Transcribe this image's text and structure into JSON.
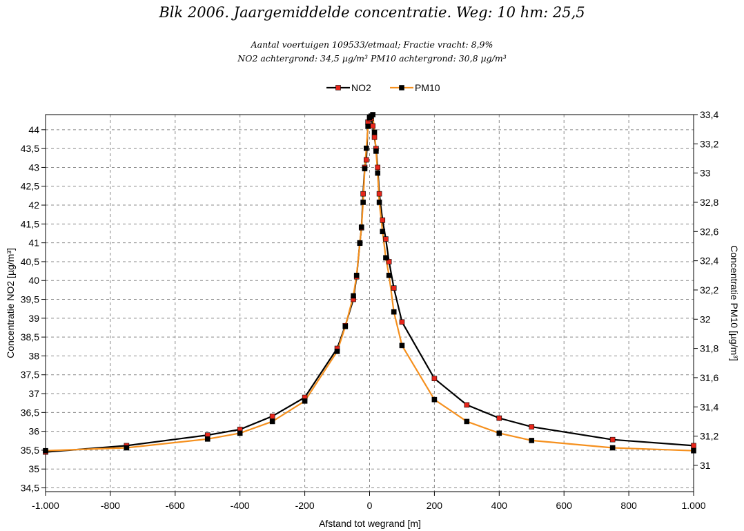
{
  "chart_data": {
    "type": "line",
    "title": "Blk 2006. Jaargemiddelde concentratie. Weg: 10 hm: 25,5",
    "subtitle_lines": [
      "Aantal voertuigen 109533/etmaal; Fractie vracht: 8,9%",
      "NO2 achtergrond:  34,5 µg/m³ PM10 achtergrond:  30,8 µg/m³"
    ],
    "xlabel": "Afstand tot wegrand [m]",
    "ylabel_left": "Concentratie NO2 [µg/m³]",
    "ylabel_right": "Concentratie PM10 [µg/m³]",
    "xlim": [
      -1000,
      1000
    ],
    "ylim_left": [
      34.4,
      44.4
    ],
    "ylim_right": [
      30.82,
      33.4
    ],
    "x_ticks": [
      -1000,
      -800,
      -600,
      -400,
      -200,
      0,
      200,
      400,
      600,
      800,
      1000
    ],
    "x_tick_labels": [
      "-1.000",
      "-800",
      "-600",
      "-400",
      "-200",
      "0",
      "200",
      "400",
      "600",
      "800",
      "1.000"
    ],
    "y_left_ticks": [
      34.5,
      35,
      35.5,
      36,
      36.5,
      37,
      37.5,
      38,
      38.5,
      39,
      39.5,
      40,
      40.5,
      41,
      41.5,
      42,
      42.5,
      43,
      43.5,
      44
    ],
    "y_left_tick_labels": [
      "34,5",
      "35",
      "35,5",
      "36",
      "36,5",
      "37",
      "37,5",
      "38",
      "38,5",
      "39",
      "39,5",
      "40",
      "40,5",
      "41",
      "41,5",
      "42",
      "42,5",
      "43",
      "43,5",
      "44"
    ],
    "y_right_ticks": [
      31,
      31.2,
      31.4,
      31.6,
      31.8,
      32,
      32.2,
      32.4,
      32.6,
      32.8,
      33,
      33.2,
      33.4
    ],
    "y_right_tick_labels": [
      "31",
      "31,2",
      "31,4",
      "31,6",
      "31,8",
      "32",
      "32,2",
      "32,4",
      "32,6",
      "32,8",
      "33",
      "33,2",
      "33,4"
    ],
    "grid": true,
    "legend_position": "top-center",
    "series": [
      {
        "name": "NO2",
        "axis": "left",
        "line_color": "#000000",
        "marker_color": "#e8261b",
        "x": [
          -1000,
          -750,
          -500,
          -400,
          -300,
          -200,
          -100,
          -75,
          -50,
          -40,
          -30,
          -25,
          -20,
          -15,
          -10,
          -5,
          0,
          5,
          10,
          15,
          20,
          25,
          30,
          40,
          50,
          60,
          75,
          100,
          200,
          300,
          400,
          500,
          750,
          1000
        ],
        "y": [
          35.45,
          35.62,
          35.9,
          36.05,
          36.4,
          36.9,
          38.2,
          38.8,
          39.5,
          40.1,
          41.0,
          41.4,
          42.3,
          43.0,
          43.2,
          44.2,
          44.3,
          44.3,
          44.1,
          43.8,
          43.5,
          43.0,
          42.3,
          41.6,
          41.1,
          40.5,
          39.8,
          38.9,
          37.4,
          36.7,
          36.35,
          36.12,
          35.78,
          35.62
        ]
      },
      {
        "name": "PM10",
        "axis": "right",
        "line_color": "#f5901e",
        "marker_color": "#000000",
        "x": [
          -1000,
          -750,
          -500,
          -400,
          -300,
          -200,
          -100,
          -75,
          -50,
          -40,
          -30,
          -25,
          -20,
          -15,
          -10,
          -5,
          0,
          5,
          10,
          15,
          20,
          25,
          30,
          40,
          50,
          60,
          75,
          100,
          200,
          300,
          400,
          500,
          750,
          1000
        ],
        "y": [
          31.1,
          31.12,
          31.18,
          31.22,
          31.3,
          31.44,
          31.78,
          31.95,
          32.16,
          32.3,
          32.52,
          32.63,
          32.8,
          33.03,
          33.17,
          33.32,
          33.38,
          33.39,
          33.4,
          33.28,
          33.15,
          33.0,
          32.8,
          32.6,
          32.42,
          32.3,
          32.05,
          31.82,
          31.45,
          31.3,
          31.22,
          31.17,
          31.12,
          31.1
        ]
      }
    ]
  }
}
